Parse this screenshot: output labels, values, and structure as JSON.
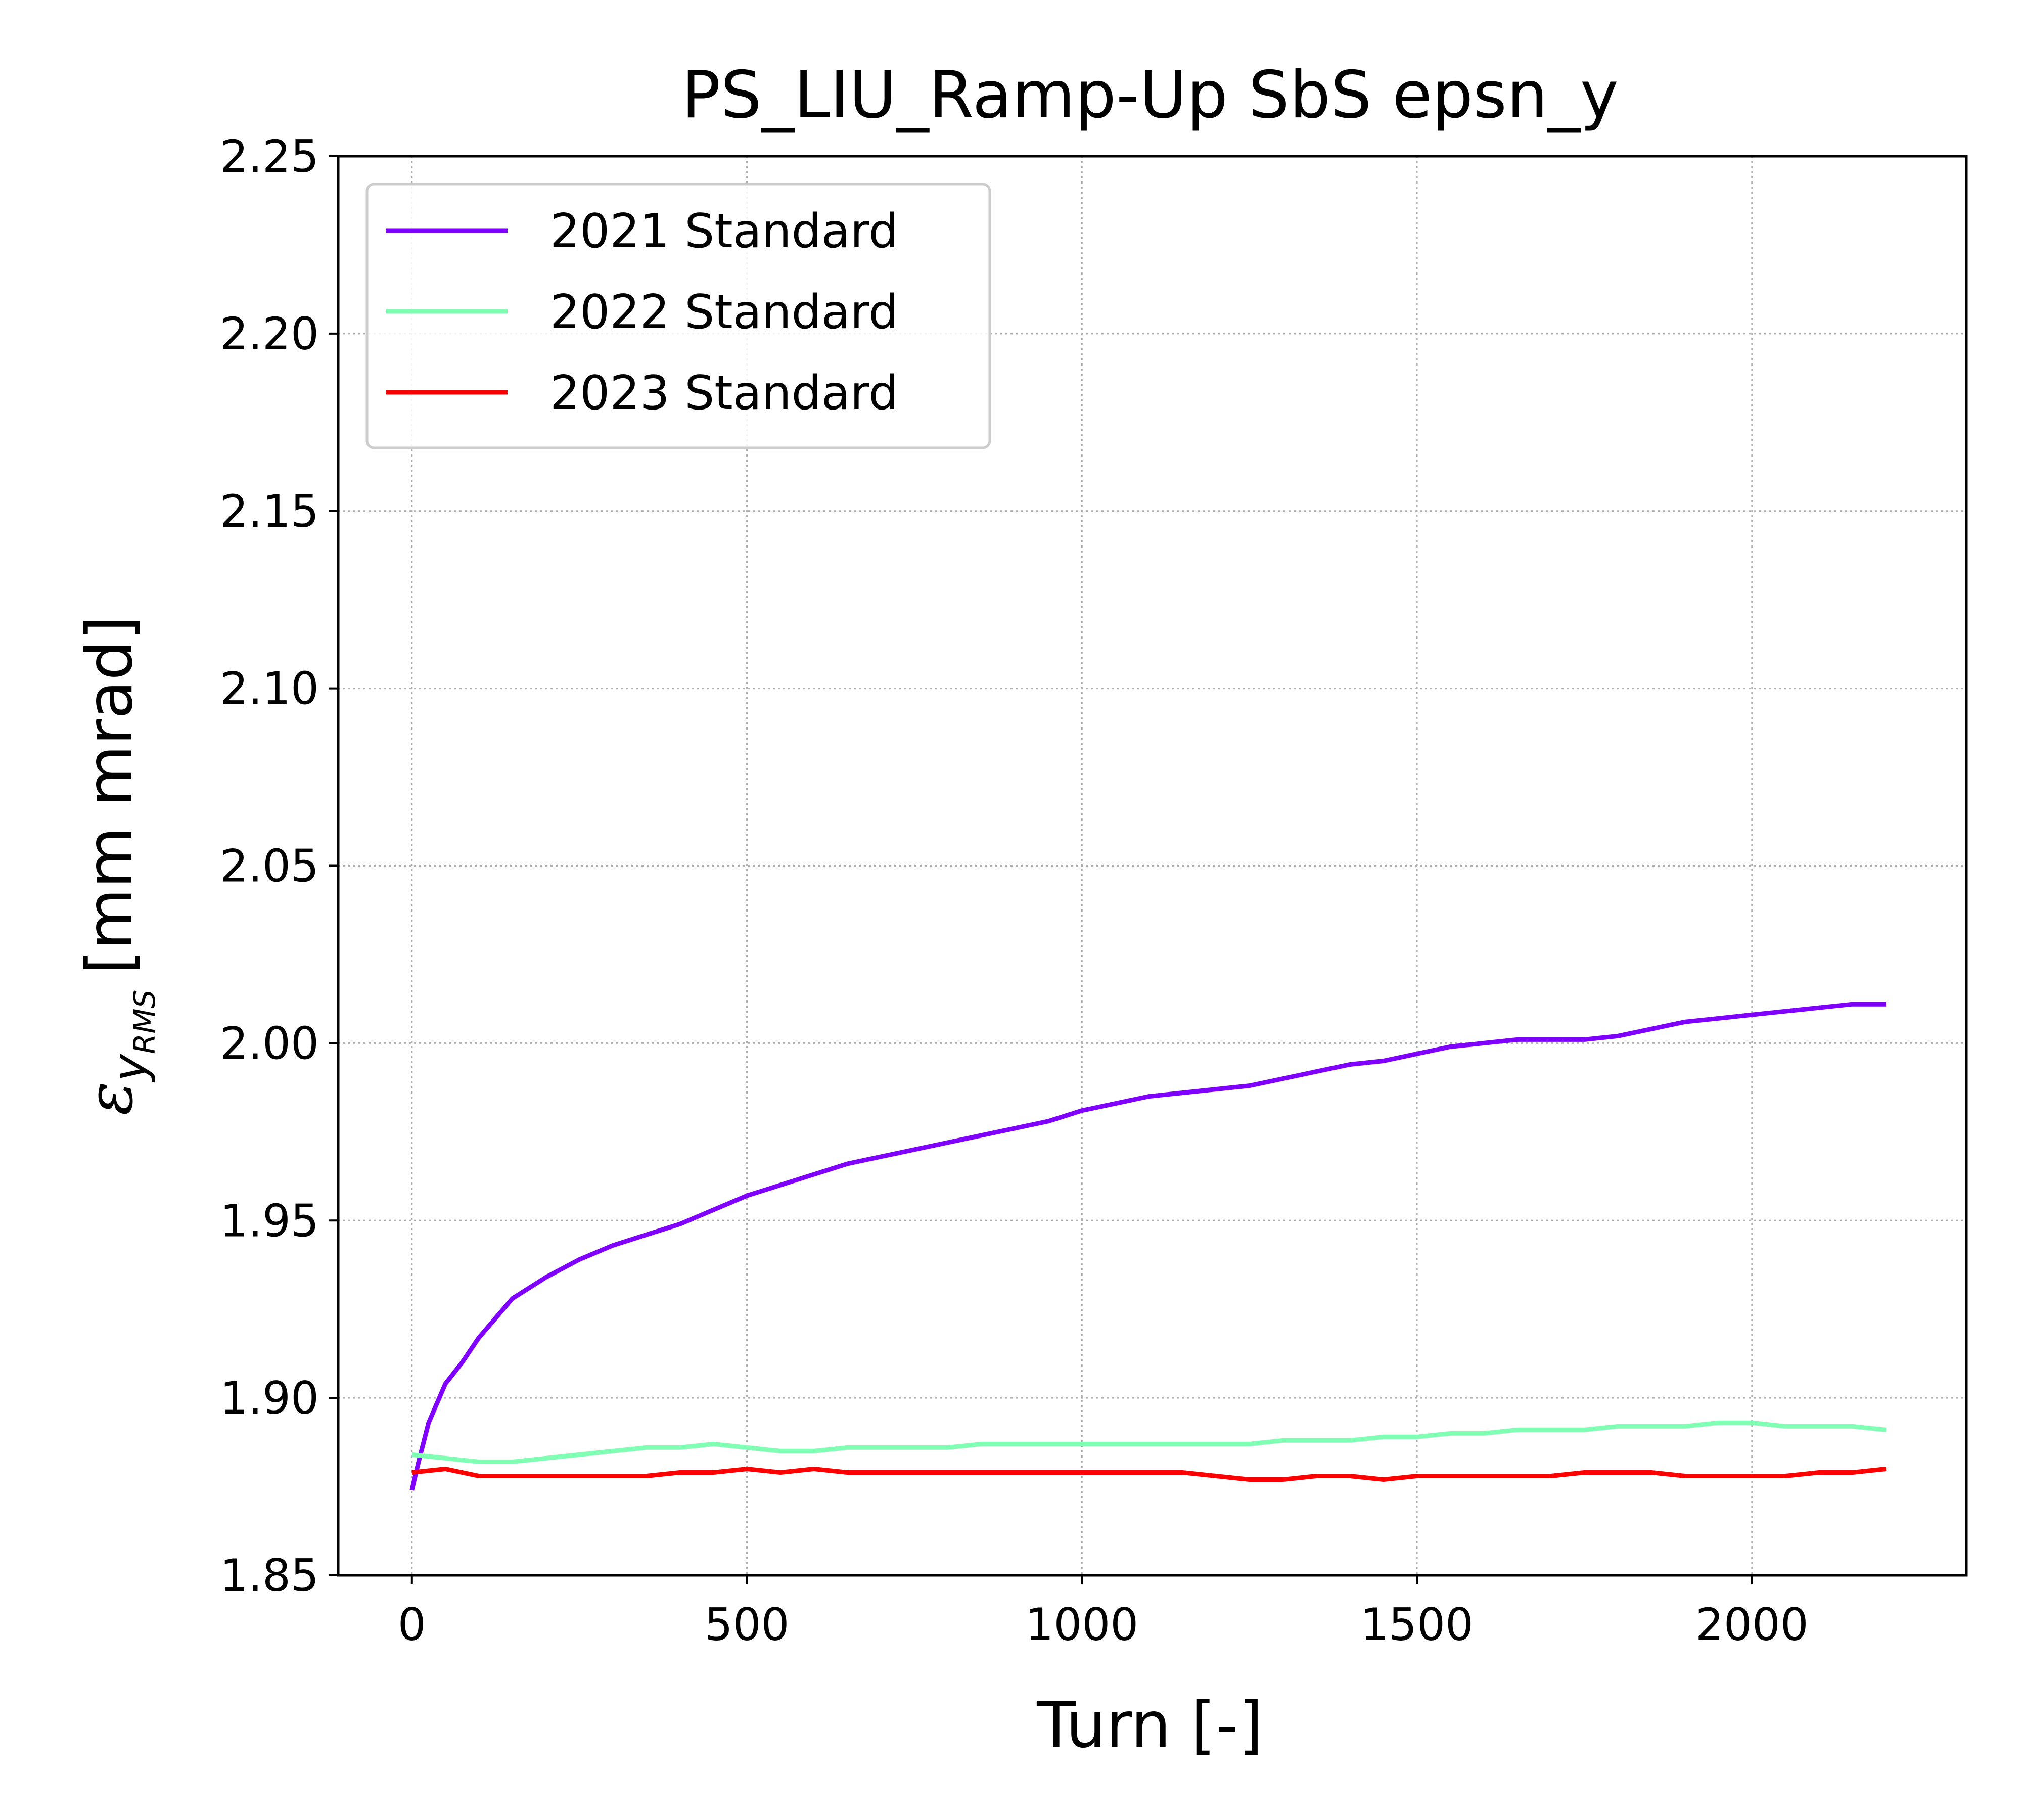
{
  "chart_data": {
    "type": "line",
    "title": "PS_LIU_Ramp-Up SbS epsn_y",
    "xlabel": "Turn [-]",
    "ylabel": {
      "symbol": "ε",
      "subscript": "y",
      "subsubscript": "RMS",
      "unit": "[mm mrad]"
    },
    "xlim": [
      -110,
      2320
    ],
    "ylim": [
      1.85,
      2.25
    ],
    "xticks": [
      0,
      500,
      1000,
      1500,
      2000
    ],
    "xtick_labels": [
      "0",
      "500",
      "1000",
      "1500",
      "2000"
    ],
    "yticks": [
      1.85,
      1.9,
      1.95,
      2.0,
      2.05,
      2.1,
      2.15,
      2.2,
      2.25
    ],
    "ytick_labels": [
      "1.85",
      "1.90",
      "1.95",
      "2.00",
      "2.05",
      "2.10",
      "2.15",
      "2.20",
      "2.25"
    ],
    "grid": true,
    "legend_position": "upper-left",
    "series": [
      {
        "name": "2021 Standard",
        "color": "#8000ff",
        "x": [
          0,
          10,
          25,
          50,
          75,
          100,
          150,
          200,
          250,
          300,
          350,
          400,
          450,
          500,
          550,
          600,
          650,
          700,
          750,
          800,
          850,
          900,
          950,
          1000,
          1050,
          1100,
          1150,
          1200,
          1250,
          1300,
          1350,
          1400,
          1450,
          1500,
          1550,
          1600,
          1650,
          1700,
          1750,
          1800,
          1850,
          1900,
          1950,
          2000,
          2050,
          2100,
          2150,
          2200
        ],
        "y": [
          1.874,
          1.882,
          1.893,
          1.904,
          1.91,
          1.917,
          1.928,
          1.934,
          1.939,
          1.943,
          1.946,
          1.949,
          1.953,
          1.957,
          1.96,
          1.963,
          1.966,
          1.968,
          1.97,
          1.972,
          1.974,
          1.976,
          1.978,
          1.981,
          1.983,
          1.985,
          1.986,
          1.987,
          1.988,
          1.99,
          1.992,
          1.994,
          1.995,
          1.997,
          1.999,
          2.0,
          2.001,
          2.001,
          2.001,
          2.002,
          2.004,
          2.006,
          2.007,
          2.008,
          2.009,
          2.01,
          2.011,
          2.011
        ]
      },
      {
        "name": "2022 Standard",
        "color": "#80ffb4",
        "x": [
          0,
          50,
          100,
          150,
          200,
          250,
          300,
          350,
          400,
          450,
          500,
          550,
          600,
          650,
          700,
          750,
          800,
          850,
          900,
          950,
          1000,
          1050,
          1100,
          1150,
          1200,
          1250,
          1300,
          1350,
          1400,
          1450,
          1500,
          1550,
          1600,
          1650,
          1700,
          1750,
          1800,
          1850,
          1900,
          1950,
          2000,
          2050,
          2100,
          2150,
          2200
        ],
        "y": [
          1.884,
          1.883,
          1.882,
          1.882,
          1.883,
          1.884,
          1.885,
          1.886,
          1.886,
          1.887,
          1.886,
          1.885,
          1.885,
          1.886,
          1.886,
          1.886,
          1.886,
          1.887,
          1.887,
          1.887,
          1.887,
          1.887,
          1.887,
          1.887,
          1.887,
          1.887,
          1.888,
          1.888,
          1.888,
          1.889,
          1.889,
          1.89,
          1.89,
          1.891,
          1.891,
          1.891,
          1.892,
          1.892,
          1.892,
          1.893,
          1.893,
          1.892,
          1.892,
          1.892,
          1.891
        ]
      },
      {
        "name": "2023 Standard",
        "color": "#ff0000",
        "x": [
          0,
          50,
          100,
          150,
          200,
          250,
          300,
          350,
          400,
          450,
          500,
          550,
          600,
          650,
          700,
          750,
          800,
          850,
          900,
          950,
          1000,
          1050,
          1100,
          1150,
          1200,
          1250,
          1300,
          1350,
          1400,
          1450,
          1500,
          1550,
          1600,
          1650,
          1700,
          1750,
          1800,
          1850,
          1900,
          1950,
          2000,
          2050,
          2100,
          2150,
          2200
        ],
        "y": [
          1.879,
          1.88,
          1.878,
          1.878,
          1.878,
          1.878,
          1.878,
          1.878,
          1.879,
          1.879,
          1.88,
          1.879,
          1.88,
          1.879,
          1.879,
          1.879,
          1.879,
          1.879,
          1.879,
          1.879,
          1.879,
          1.879,
          1.879,
          1.879,
          1.878,
          1.877,
          1.877,
          1.878,
          1.878,
          1.877,
          1.878,
          1.878,
          1.878,
          1.878,
          1.878,
          1.879,
          1.879,
          1.879,
          1.878,
          1.878,
          1.878,
          1.878,
          1.879,
          1.879,
          1.88
        ]
      }
    ]
  }
}
